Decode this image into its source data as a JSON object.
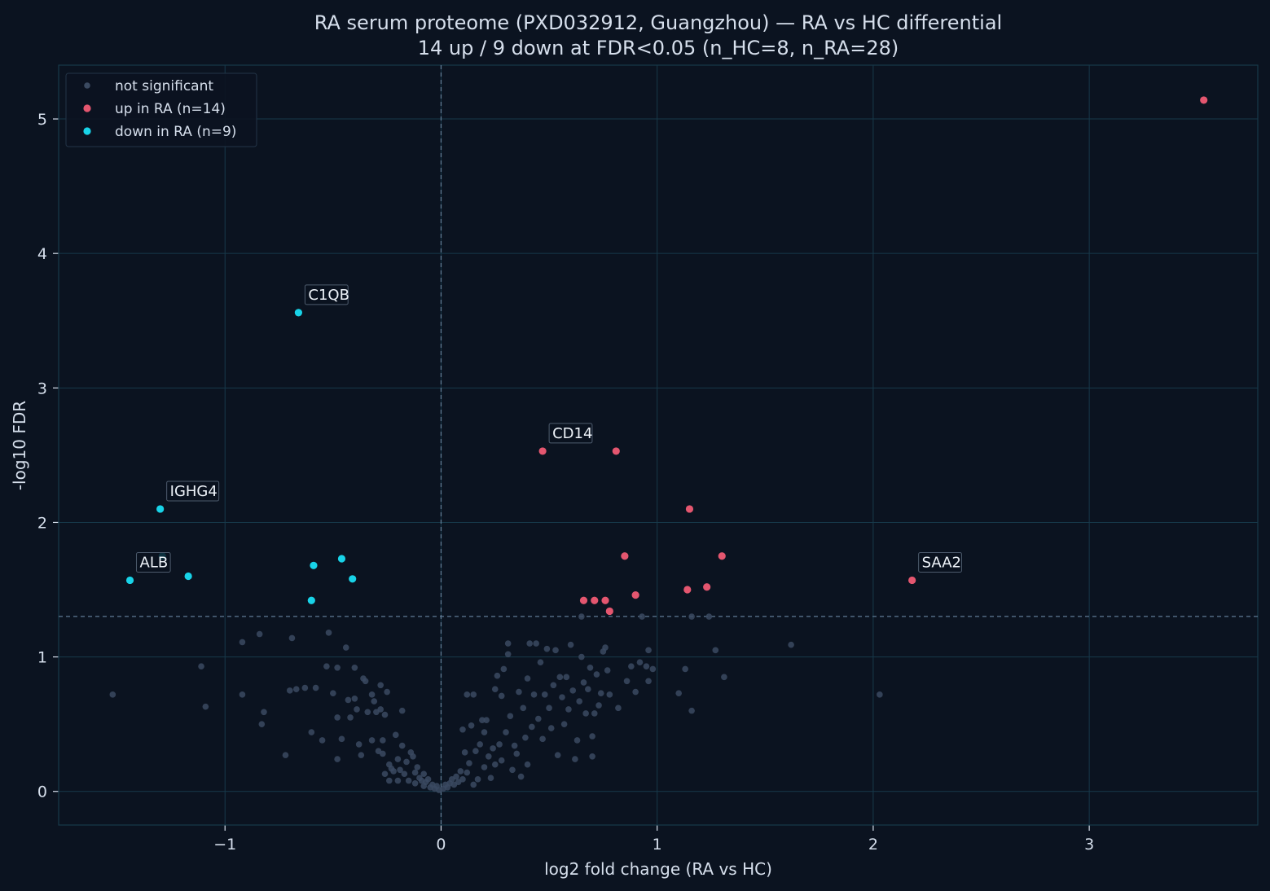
{
  "chart_data": {
    "type": "scatter",
    "title": "RA serum proteome (PXD032912, Guangzhou) — RA vs HC differential",
    "subtitle": "14 up / 9 down at FDR<0.05  (n_HC=8, n_RA=28)",
    "xlabel": "log2 fold change (RA vs HC)",
    "ylabel": "-log10 FDR",
    "xlim": [
      -1.77,
      3.78
    ],
    "ylim": [
      -0.25,
      5.4
    ],
    "xticks": [
      -1,
      0,
      1,
      2,
      3
    ],
    "xtick_labels": [
      "−1",
      "0",
      "1",
      "2",
      "3"
    ],
    "yticks": [
      0,
      1,
      2,
      3,
      4,
      5
    ],
    "ytick_labels": [
      "0",
      "1",
      "2",
      "3",
      "4",
      "5"
    ],
    "grid": true,
    "threshold_lines": {
      "x": 0,
      "y": 1.30103
    },
    "legend_position": "upper-left",
    "colors": {
      "background": "#0b1320",
      "grid": "#17394a",
      "text": "#d6dfec",
      "ns": "#3b4a61",
      "up": "#e4566f",
      "down": "#18d3e8",
      "threshold": "#5f7a94"
    },
    "series": [
      {
        "name": "not significant",
        "color": "#3b4a61",
        "points": [
          [
            -1.52,
            0.72
          ],
          [
            -1.11,
            0.93
          ],
          [
            -1.09,
            0.63
          ],
          [
            -0.92,
            1.11
          ],
          [
            -0.92,
            0.72
          ],
          [
            -0.84,
            1.17
          ],
          [
            -0.82,
            0.59
          ],
          [
            -0.83,
            0.5
          ],
          [
            -0.69,
            1.14
          ],
          [
            -0.72,
            0.27
          ],
          [
            -0.7,
            0.75
          ],
          [
            -0.67,
            0.76
          ],
          [
            -0.63,
            0.77
          ],
          [
            -0.6,
            0.44
          ],
          [
            -0.58,
            0.77
          ],
          [
            -0.55,
            0.38
          ],
          [
            -0.53,
            0.93
          ],
          [
            -0.52,
            1.18
          ],
          [
            -0.5,
            0.73
          ],
          [
            -0.48,
            0.92
          ],
          [
            -0.48,
            0.55
          ],
          [
            -0.48,
            0.24
          ],
          [
            -0.46,
            0.39
          ],
          [
            -0.44,
            1.07
          ],
          [
            -0.43,
            0.68
          ],
          [
            -0.42,
            0.55
          ],
          [
            -0.4,
            0.92
          ],
          [
            -0.4,
            0.69
          ],
          [
            -0.39,
            0.61
          ],
          [
            -0.38,
            0.35
          ],
          [
            -0.37,
            0.27
          ],
          [
            -0.36,
            0.84
          ],
          [
            -0.35,
            0.82
          ],
          [
            -0.34,
            0.59
          ],
          [
            -0.32,
            0.72
          ],
          [
            -0.32,
            0.38
          ],
          [
            -0.31,
            0.67
          ],
          [
            -0.3,
            0.59
          ],
          [
            -0.29,
            0.3
          ],
          [
            -0.28,
            0.79
          ],
          [
            -0.28,
            0.61
          ],
          [
            -0.27,
            0.38
          ],
          [
            -0.27,
            0.28
          ],
          [
            -0.26,
            0.57
          ],
          [
            -0.26,
            0.13
          ],
          [
            -0.25,
            0.74
          ],
          [
            -0.24,
            0.2
          ],
          [
            -0.24,
            0.08
          ],
          [
            -0.23,
            0.17
          ],
          [
            -0.22,
            0.15
          ],
          [
            -0.21,
            0.42
          ],
          [
            -0.2,
            0.24
          ],
          [
            -0.2,
            0.08
          ],
          [
            -0.19,
            0.16
          ],
          [
            -0.18,
            0.6
          ],
          [
            -0.18,
            0.34
          ],
          [
            -0.17,
            0.13
          ],
          [
            -0.16,
            0.22
          ],
          [
            -0.15,
            0.08
          ],
          [
            -0.14,
            0.29
          ],
          [
            -0.13,
            0.26
          ],
          [
            -0.12,
            0.14
          ],
          [
            -0.12,
            0.06
          ],
          [
            -0.11,
            0.18
          ],
          [
            -0.1,
            0.1
          ],
          [
            -0.09,
            0.08
          ],
          [
            -0.08,
            0.04
          ],
          [
            -0.08,
            0.13
          ],
          [
            -0.07,
            0.07
          ],
          [
            -0.06,
            0.09
          ],
          [
            -0.05,
            0.03
          ],
          [
            -0.04,
            0.05
          ],
          [
            -0.03,
            0.02
          ],
          [
            -0.02,
            0.04
          ],
          [
            -0.01,
            0.01
          ],
          [
            0.01,
            0.02
          ],
          [
            0.02,
            0.05
          ],
          [
            0.03,
            0.03
          ],
          [
            0.04,
            0.06
          ],
          [
            0.05,
            0.09
          ],
          [
            0.06,
            0.05
          ],
          [
            0.07,
            0.11
          ],
          [
            0.08,
            0.07
          ],
          [
            0.09,
            0.15
          ],
          [
            0.1,
            0.09
          ],
          [
            0.1,
            0.46
          ],
          [
            0.11,
            0.29
          ],
          [
            0.12,
            0.14
          ],
          [
            0.12,
            0.72
          ],
          [
            0.13,
            0.21
          ],
          [
            0.14,
            0.49
          ],
          [
            0.15,
            0.72
          ],
          [
            0.15,
            0.05
          ],
          [
            0.16,
            0.3
          ],
          [
            0.17,
            0.09
          ],
          [
            0.18,
            0.35
          ],
          [
            0.19,
            0.53
          ],
          [
            0.2,
            0.18
          ],
          [
            0.2,
            0.44
          ],
          [
            0.21,
            0.53
          ],
          [
            0.22,
            0.26
          ],
          [
            0.23,
            0.1
          ],
          [
            0.24,
            0.32
          ],
          [
            0.25,
            0.2
          ],
          [
            0.25,
            0.76
          ],
          [
            0.26,
            0.86
          ],
          [
            0.27,
            0.35
          ],
          [
            0.28,
            0.71
          ],
          [
            0.28,
            0.23
          ],
          [
            0.29,
            0.91
          ],
          [
            0.3,
            0.44
          ],
          [
            0.31,
            1.1
          ],
          [
            0.31,
            1.02
          ],
          [
            0.32,
            0.56
          ],
          [
            0.33,
            0.16
          ],
          [
            0.34,
            0.34
          ],
          [
            0.35,
            0.28
          ],
          [
            0.36,
            0.74
          ],
          [
            0.37,
            0.11
          ],
          [
            0.38,
            0.62
          ],
          [
            0.39,
            0.4
          ],
          [
            0.4,
            0.2
          ],
          [
            0.4,
            0.84
          ],
          [
            0.41,
            1.1
          ],
          [
            0.42,
            0.48
          ],
          [
            0.43,
            0.72
          ],
          [
            0.44,
            1.1
          ],
          [
            0.45,
            0.54
          ],
          [
            0.46,
            0.96
          ],
          [
            0.47,
            0.39
          ],
          [
            0.48,
            0.72
          ],
          [
            0.49,
            1.06
          ],
          [
            0.5,
            0.62
          ],
          [
            0.51,
            0.47
          ],
          [
            0.52,
            0.79
          ],
          [
            0.53,
            1.05
          ],
          [
            0.54,
            0.27
          ],
          [
            0.55,
            0.85
          ],
          [
            0.56,
            0.7
          ],
          [
            0.57,
            0.5
          ],
          [
            0.58,
            0.85
          ],
          [
            0.59,
            0.61
          ],
          [
            0.6,
            1.09
          ],
          [
            0.61,
            0.75
          ],
          [
            0.62,
            0.24
          ],
          [
            0.63,
            0.38
          ],
          [
            0.64,
            0.67
          ],
          [
            0.65,
            1.0
          ],
          [
            0.66,
            0.81
          ],
          [
            0.67,
            0.58
          ],
          [
            0.68,
            0.76
          ],
          [
            0.69,
            0.92
          ],
          [
            0.7,
            0.41
          ],
          [
            0.71,
            0.58
          ],
          [
            0.72,
            0.87
          ],
          [
            0.73,
            0.64
          ],
          [
            0.74,
            0.73
          ],
          [
            0.75,
            1.04
          ],
          [
            0.76,
            1.07
          ],
          [
            0.77,
            0.9
          ],
          [
            0.78,
            0.72
          ],
          [
            0.7,
            0.26
          ],
          [
            0.82,
            0.62
          ],
          [
            0.86,
            0.82
          ],
          [
            0.88,
            0.93
          ],
          [
            0.9,
            0.74
          ],
          [
            0.92,
            0.96
          ],
          [
            0.95,
            0.93
          ],
          [
            0.96,
            1.05
          ],
          [
            0.96,
            0.82
          ],
          [
            0.98,
            0.91
          ],
          [
            0.65,
            1.3
          ],
          [
            0.93,
            1.3
          ],
          [
            1.1,
            0.73
          ],
          [
            1.13,
            0.91
          ],
          [
            1.16,
            0.6
          ],
          [
            1.16,
            1.3
          ],
          [
            1.24,
            1.3
          ],
          [
            1.27,
            1.05
          ],
          [
            1.31,
            0.85
          ],
          [
            1.62,
            1.09
          ],
          [
            2.03,
            0.72
          ]
        ]
      },
      {
        "name": "up in RA (n=14)",
        "color": "#e4566f",
        "points": [
          [
            3.53,
            5.14
          ],
          [
            0.47,
            2.53
          ],
          [
            0.81,
            2.53
          ],
          [
            1.15,
            2.1
          ],
          [
            0.85,
            1.75
          ],
          [
            1.3,
            1.75
          ],
          [
            2.18,
            1.57
          ],
          [
            1.23,
            1.52
          ],
          [
            1.14,
            1.5
          ],
          [
            0.9,
            1.46
          ],
          [
            0.66,
            1.42
          ],
          [
            0.71,
            1.42
          ],
          [
            0.76,
            1.42
          ],
          [
            0.78,
            1.34
          ]
        ]
      },
      {
        "name": "down in RA (n=9)",
        "color": "#18d3e8",
        "points": [
          [
            -0.66,
            3.56
          ],
          [
            -1.3,
            2.1
          ],
          [
            -1.29,
            1.75
          ],
          [
            -0.59,
            1.68
          ],
          [
            -0.46,
            1.73
          ],
          [
            -1.17,
            1.6
          ],
          [
            -1.44,
            1.57
          ],
          [
            -0.41,
            1.58
          ],
          [
            -0.6,
            1.42
          ]
        ]
      }
    ],
    "annotations": [
      {
        "label": "C1QB",
        "x": -0.66,
        "y": 3.56
      },
      {
        "label": "CD14",
        "x": 0.47,
        "y": 2.53
      },
      {
        "label": "IGHG4",
        "x": -1.3,
        "y": 2.1
      },
      {
        "label": "ALB",
        "x": -1.44,
        "y": 1.57
      },
      {
        "label": "SAA2",
        "x": 2.18,
        "y": 1.57
      }
    ]
  }
}
